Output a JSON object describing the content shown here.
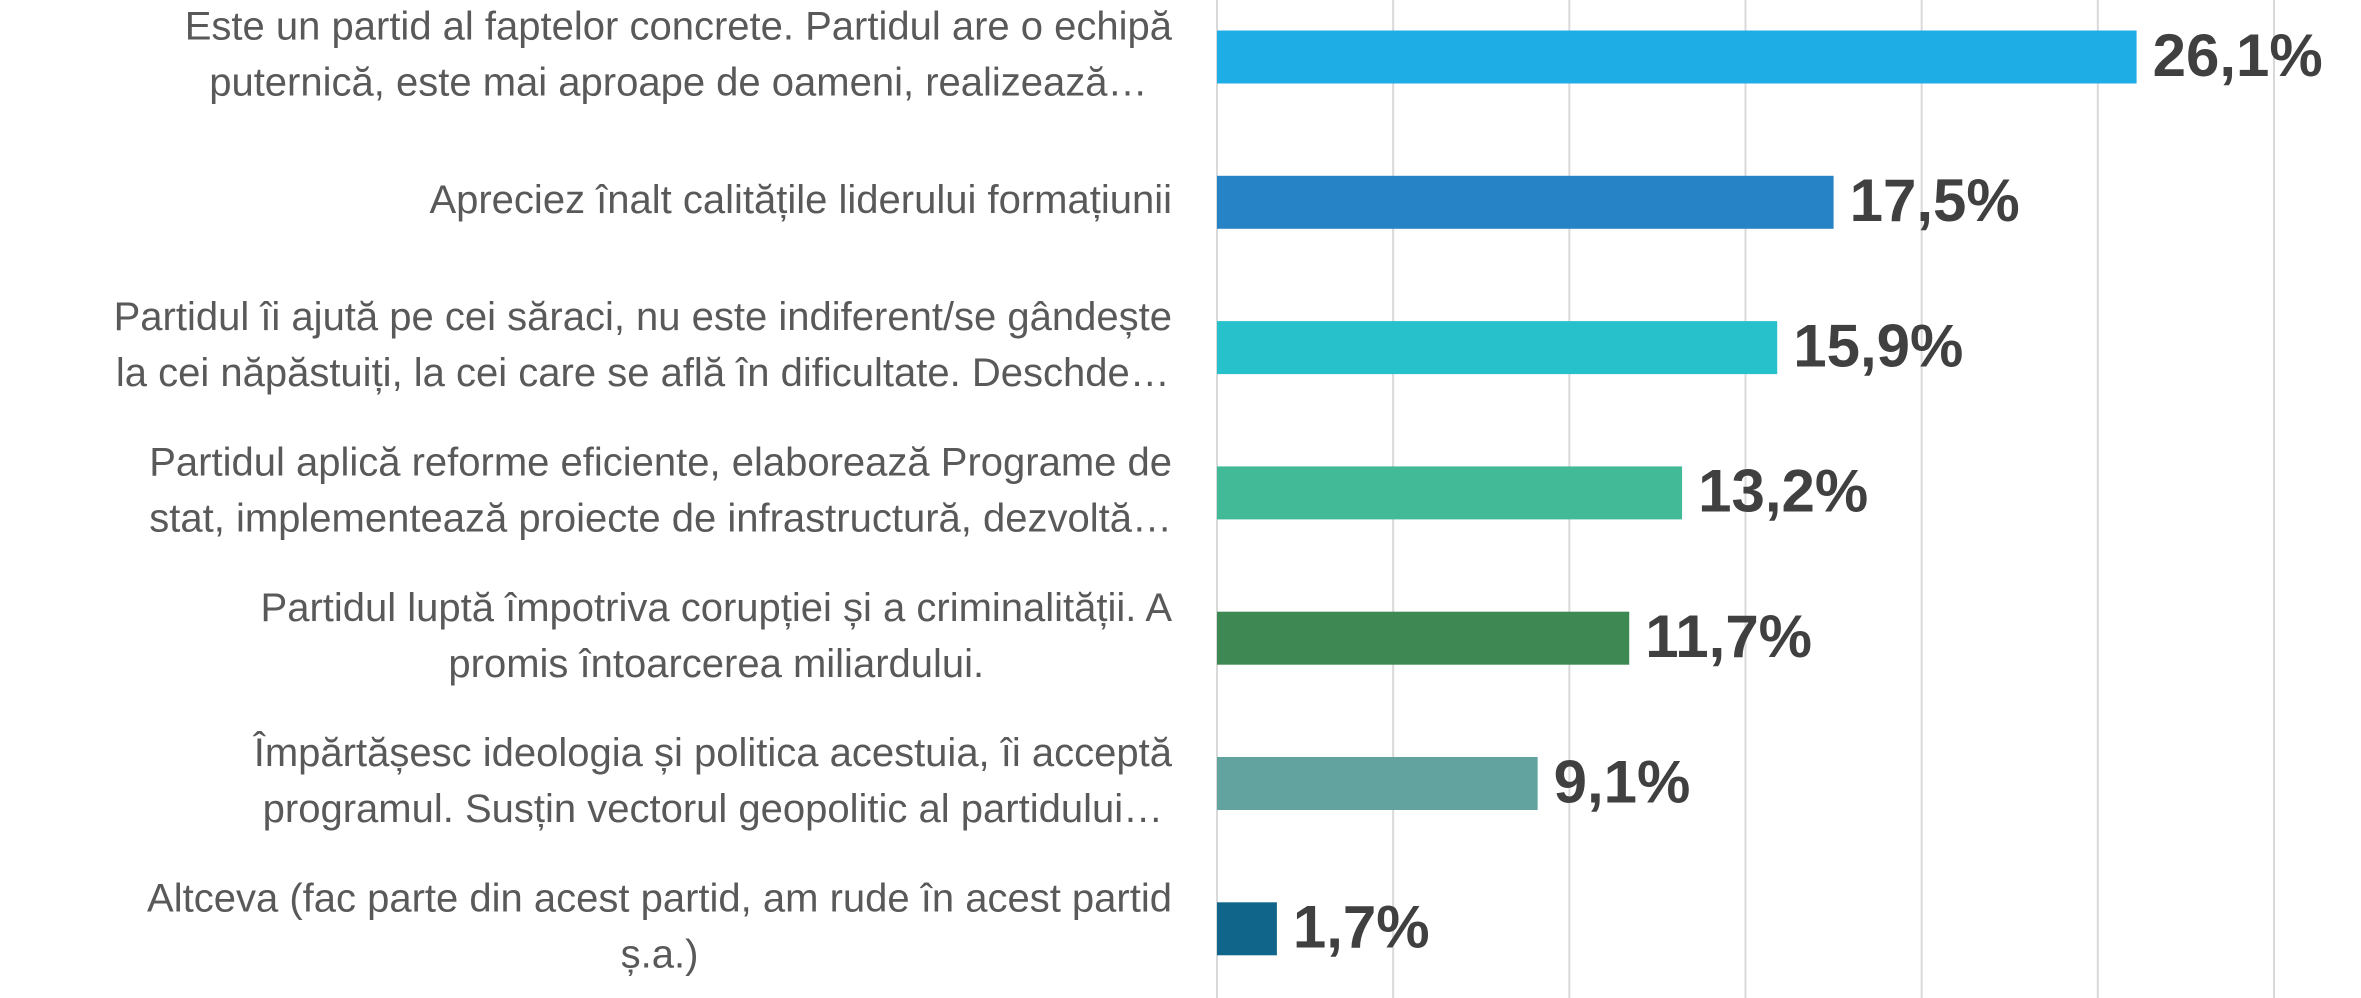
{
  "chart_data": {
    "type": "bar",
    "orientation": "horizontal",
    "categories": [
      [
        "Este un partid al faptelor concrete. Partidul are o echipă",
        "puternică, este mai aproape de oameni, realizează…"
      ],
      [
        "Apreciez înalt calitățile liderului formațiunii"
      ],
      [
        "Partidul îi ajută pe cei săraci, nu este indiferent/se gândește",
        "la cei năpăstuiți, la cei care se află în dificultate. Deschde…"
      ],
      [
        "Partidul aplică reforme eficiente, elaborează Programe de",
        "stat, implementează proiecte de infrastructură, dezvoltă…"
      ],
      [
        "Partidul luptă împotriva corupției și a criminalității. A",
        "promis întoarcerea miliardului."
      ],
      [
        "Împărtășesc ideologia și politica acestuia, îi acceptă",
        "programul. Susțin vectorul geopolitic al partidului…"
      ],
      [
        "Altceva (fac parte din acest partid, am rude în acest partid",
        "ș.a.)"
      ]
    ],
    "values": [
      26.1,
      17.5,
      15.9,
      13.2,
      11.7,
      9.1,
      1.7
    ],
    "value_labels": [
      "26,1%",
      "17,5%",
      "15,9%",
      "13,2%",
      "11,7%",
      "9,1%",
      "1,7%"
    ],
    "colors": [
      "#1eaee5",
      "#2683c6",
      "#27c1cc",
      "#42ba97",
      "#3e8853",
      "#62a39f",
      "#10668a"
    ],
    "xlim": [
      0,
      30
    ],
    "xticks": [
      0,
      5,
      10,
      15,
      20,
      25,
      30
    ],
    "grid": true
  }
}
